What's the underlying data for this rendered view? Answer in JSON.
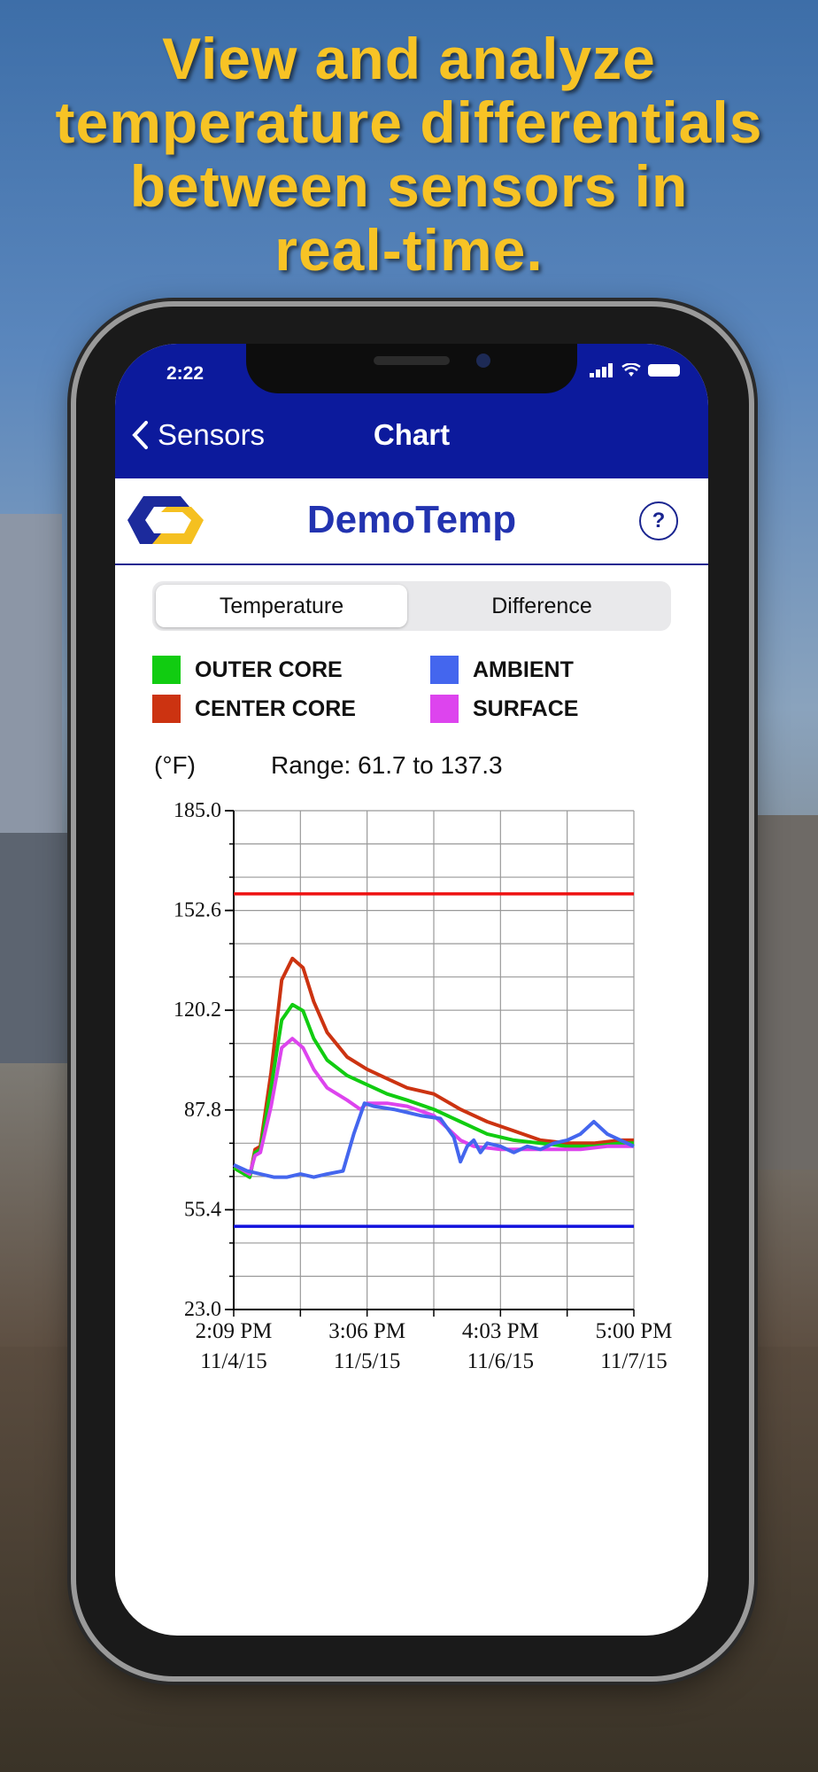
{
  "headline": [
    "View and analyze",
    "temperature differentials",
    "between sensors in",
    "real-time."
  ],
  "status_bar": {
    "time": "2:22"
  },
  "navbar": {
    "back_label": "Sensors",
    "title": "Chart"
  },
  "header": {
    "brand": "DemoTemp",
    "help_label": "?"
  },
  "segment": {
    "options": [
      "Temperature",
      "Difference"
    ],
    "selected": "Temperature"
  },
  "legend": [
    {
      "label": "OUTER CORE",
      "color": "#11cc11"
    },
    {
      "label": "AMBIENT",
      "color": "#4466ee"
    },
    {
      "label": "CENTER CORE",
      "color": "#cc3311"
    },
    {
      "label": "SURFACE",
      "color": "#dd44ee"
    }
  ],
  "unit_label": "(°F)",
  "range_label": "Range: 61.7 to 137.3",
  "chart_data": {
    "type": "line",
    "y_ticks": [
      "185.0",
      "152.6",
      "120.2",
      "87.8",
      "55.4",
      "23.0"
    ],
    "ylim": [
      23.0,
      185.0
    ],
    "x_ticks": [
      {
        "time": "2:09 PM",
        "date": "11/4/15"
      },
      {
        "time": "3:06 PM",
        "date": "11/5/15"
      },
      {
        "time": "4:03 PM",
        "date": "11/6/15"
      },
      {
        "time": "5:00 PM",
        "date": "11/7/15"
      }
    ],
    "x_range": [
      0,
      3
    ],
    "thresholds": [
      {
        "value": 158,
        "color": "#ee1111"
      },
      {
        "value": 50,
        "color": "#1111dd"
      }
    ],
    "series": [
      {
        "key": "center",
        "color": "#cc3311",
        "x": [
          0,
          0.08,
          0.12,
          0.16,
          0.2,
          0.28,
          0.36,
          0.44,
          0.52,
          0.6,
          0.7,
          0.85,
          1.0,
          1.15,
          1.3,
          1.5,
          1.7,
          1.9,
          2.1,
          2.3,
          2.5,
          2.7,
          2.9,
          3.0
        ],
        "y": [
          69,
          67,
          66,
          75,
          76,
          100,
          130,
          137,
          134,
          123,
          113,
          105,
          101,
          98,
          95,
          93,
          88,
          84,
          81,
          78,
          77,
          77,
          78,
          78
        ]
      },
      {
        "key": "outer",
        "color": "#11cc11",
        "x": [
          0,
          0.08,
          0.12,
          0.16,
          0.2,
          0.28,
          0.36,
          0.44,
          0.52,
          0.6,
          0.7,
          0.85,
          1.0,
          1.15,
          1.3,
          1.5,
          1.7,
          1.9,
          2.1,
          2.3,
          2.5,
          2.7,
          2.9,
          3.0
        ],
        "y": [
          69,
          67,
          66,
          74,
          75,
          95,
          117,
          122,
          120,
          111,
          104,
          99,
          96,
          93,
          91,
          88,
          84,
          80,
          78,
          77,
          76,
          76,
          77,
          77
        ]
      },
      {
        "key": "surface",
        "color": "#dd44ee",
        "x": [
          0,
          0.08,
          0.12,
          0.16,
          0.2,
          0.28,
          0.36,
          0.44,
          0.52,
          0.6,
          0.7,
          0.85,
          0.95,
          1.0,
          1.15,
          1.3,
          1.5,
          1.6,
          1.7,
          1.8,
          2.0,
          2.2,
          2.4,
          2.6,
          2.8,
          3.0
        ],
        "y": [
          70,
          68,
          67,
          73,
          74,
          89,
          108,
          111,
          108,
          101,
          95,
          91,
          88,
          90,
          90,
          89,
          86,
          82,
          78,
          76,
          75,
          75,
          75,
          75,
          76,
          76
        ]
      },
      {
        "key": "ambient",
        "color": "#4466ee",
        "x": [
          0,
          0.1,
          0.2,
          0.3,
          0.4,
          0.5,
          0.6,
          0.7,
          0.82,
          0.9,
          0.98,
          1.05,
          1.2,
          1.4,
          1.55,
          1.65,
          1.7,
          1.75,
          1.8,
          1.85,
          1.9,
          2.0,
          2.1,
          2.2,
          2.3,
          2.4,
          2.5,
          2.6,
          2.7,
          2.8,
          2.9,
          3.0
        ],
        "y": [
          70,
          68,
          67,
          66,
          66,
          67,
          66,
          67,
          68,
          80,
          90,
          89,
          88,
          86,
          85,
          79,
          71,
          76,
          78,
          74,
          77,
          76,
          74,
          76,
          75,
          77,
          78,
          80,
          84,
          80,
          78,
          76
        ]
      }
    ]
  }
}
